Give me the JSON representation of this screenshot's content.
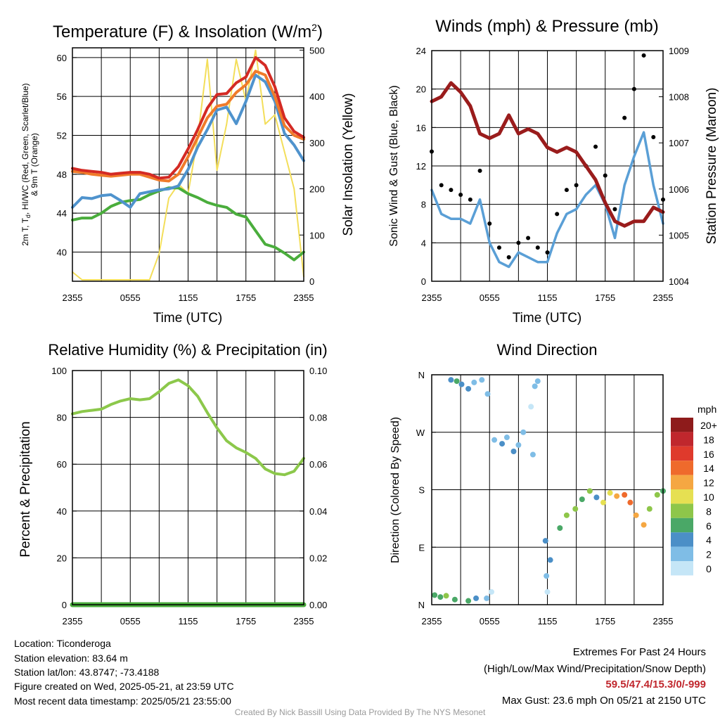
{
  "colors": {
    "temp_red": "#d42a24",
    "temp_orange": "#f07b2a",
    "temp_blue": "#4f93cd",
    "temp_green": "#4aad3c",
    "insolation": "#f3de5a",
    "wind_blue": "#5a9fd6",
    "gust": "#000000",
    "pressure": "#9a1c1c",
    "rh": "#8cc84b",
    "precip": "#4aad3c"
  },
  "time_ticks": [
    "2355",
    "0555",
    "1155",
    "1755",
    "2355"
  ],
  "charts": {
    "temperature": {
      "title": "Temperature (F) & Insolation (W/m",
      "title_sup": "2",
      "title_close": ")",
      "xlabel": "Time (UTC)",
      "ylabel_line1": "2m T, T",
      "ylabel_sub": "d",
      "ylabel_rest": ", HI/WC (Red, Green, Scarlet/Blue)",
      "ylabel_line2": "& 9m T (Orange)",
      "y2label": "Solar Insolation (Yellow)",
      "yticks": [
        "40",
        "44",
        "48",
        "52",
        "56",
        "60"
      ],
      "y2ticks": [
        "0",
        "100",
        "200",
        "300",
        "400",
        "500"
      ]
    },
    "winds": {
      "title": "Winds (mph) & Pressure (mb)",
      "xlabel": "Time (UTC)",
      "ylabel": "Sonic Wind & Gust (Blue, Black)",
      "y2label": "Station Pressure (Maroon)",
      "yticks": [
        "0",
        "4",
        "8",
        "12",
        "16",
        "20",
        "24"
      ],
      "y2ticks": [
        "1004",
        "1005",
        "1006",
        "1007",
        "1008",
        "1009"
      ]
    },
    "humidity": {
      "title": "Relative Humidity (%) & Precipitation (in)",
      "ylabel": "Percent & Precipitation",
      "yticks": [
        "0",
        "20",
        "40",
        "60",
        "80",
        "100"
      ],
      "y2ticks": [
        "0.00",
        "0.02",
        "0.04",
        "0.06",
        "0.08",
        "0.10"
      ]
    },
    "direction": {
      "title": "Wind Direction",
      "ylabel": "Direction (Colored By Speed)",
      "yticks": [
        "N",
        "E",
        "S",
        "W",
        "N"
      ],
      "legend_title": "mph",
      "legend_labels": [
        "20+",
        "18",
        "16",
        "14",
        "12",
        "10",
        "8",
        "6",
        "4",
        "2",
        "0"
      ],
      "legend_colors": [
        "#8e1b1b",
        "#c0272d",
        "#df3a2c",
        "#ef6a2c",
        "#f5a742",
        "#e6e052",
        "#8ec64a",
        "#4aa867",
        "#4b8fc7",
        "#7fbde6",
        "#c5e6f7"
      ]
    }
  },
  "chart_data": [
    {
      "type": "line",
      "title": "Temperature (F) & Insolation (W/m2)",
      "xlabel": "Time (UTC)",
      "x": [
        0,
        1,
        2,
        3,
        4,
        5,
        6,
        7,
        8,
        9,
        10,
        11,
        12,
        13,
        14,
        15,
        16,
        17,
        18,
        19,
        20,
        21,
        22,
        23,
        24
      ],
      "ylim": [
        37,
        61
      ],
      "y2lim": [
        0,
        505
      ],
      "series": [
        {
          "axis": "left",
          "color": "#d42a24",
          "values": [
            48.6,
            48.4,
            48.3,
            48.2,
            48.0,
            48.1,
            48.2,
            48.2,
            48.0,
            47.6,
            47.7,
            48.8,
            50.6,
            52.6,
            54.8,
            56.2,
            56.3,
            57.4,
            58.0,
            60.0,
            59.2,
            57.0,
            53.8,
            52.4,
            51.8
          ]
        },
        {
          "axis": "left",
          "color": "#f07b2a",
          "values": [
            48.3,
            48.2,
            48.0,
            47.9,
            47.8,
            47.9,
            48.0,
            48.0,
            47.7,
            47.4,
            47.3,
            48.0,
            49.8,
            51.8,
            53.8,
            55.0,
            55.2,
            56.4,
            57.2,
            58.6,
            58.2,
            56.0,
            53.0,
            52.0,
            51.6
          ]
        },
        {
          "axis": "left",
          "color": "#4f93cd",
          "values": [
            44.6,
            45.6,
            45.5,
            45.8,
            45.9,
            45.3,
            44.6,
            46.0,
            46.2,
            46.4,
            46.5,
            46.8,
            48.5,
            50.8,
            52.6,
            54.6,
            54.9,
            53.2,
            55.5,
            58.2,
            57.5,
            55.5,
            52.2,
            51.0,
            49.4
          ]
        },
        {
          "axis": "left",
          "color": "#4aad3c",
          "values": [
            43.3,
            43.5,
            43.5,
            44.0,
            44.7,
            45.1,
            45.3,
            45.4,
            45.9,
            46.3,
            46.6,
            46.6,
            46.0,
            45.6,
            45.1,
            44.8,
            44.6,
            43.9,
            43.6,
            42.2,
            40.8,
            40.5,
            39.9,
            39.2,
            40.0
          ]
        },
        {
          "axis": "right",
          "color": "#f3de5a",
          "values": [
            20,
            3,
            3,
            3,
            3,
            3,
            3,
            3,
            3,
            60,
            180,
            210,
            190,
            310,
            480,
            240,
            340,
            480,
            390,
            500,
            340,
            360,
            280,
            200,
            10
          ]
        }
      ]
    },
    {
      "type": "line",
      "title": "Winds (mph) & Pressure (mb)",
      "xlabel": "Time (UTC)",
      "x": [
        0,
        1,
        2,
        3,
        4,
        5,
        6,
        7,
        8,
        9,
        10,
        11,
        12,
        13,
        14,
        15,
        16,
        17,
        18,
        19,
        20,
        21,
        22,
        23,
        24
      ],
      "ylim": [
        0,
        24
      ],
      "y2lim": [
        1004,
        1009
      ],
      "series": [
        {
          "axis": "left",
          "color": "#5a9fd6",
          "values": [
            9.5,
            7.0,
            6.5,
            6.5,
            6.0,
            8.5,
            4.0,
            2.0,
            1.5,
            3.0,
            2.5,
            2.0,
            2.0,
            5.0,
            7.0,
            7.5,
            9.0,
            10.0,
            8.0,
            4.5,
            10.0,
            13.0,
            15.5,
            10.0,
            6.0
          ]
        },
        {
          "axis": "left",
          "color": "#000000",
          "values": [
            13.5,
            10.0,
            9.5,
            9.0,
            8.5,
            11.5,
            6.0,
            3.5,
            2.5,
            4.0,
            4.5,
            3.5,
            3.0,
            7.0,
            9.5,
            10.0,
            12.0,
            14.0,
            11.0,
            7.5,
            17.0,
            20.0,
            23.5,
            15.0,
            8.5
          ]
        },
        {
          "axis": "right",
          "color": "#9a1c1c",
          "values": [
            1007.9,
            1008.0,
            1008.3,
            1008.1,
            1007.8,
            1007.2,
            1007.1,
            1007.2,
            1007.6,
            1007.2,
            1007.3,
            1007.2,
            1006.9,
            1006.8,
            1006.9,
            1006.8,
            1006.5,
            1006.2,
            1005.7,
            1005.3,
            1005.2,
            1005.3,
            1005.3,
            1005.6,
            1005.5
          ]
        }
      ]
    },
    {
      "type": "line",
      "title": "Relative Humidity (%) & Precipitation (in)",
      "x": [
        0,
        1,
        2,
        3,
        4,
        5,
        6,
        7,
        8,
        9,
        10,
        11,
        12,
        13,
        14,
        15,
        16,
        17,
        18,
        19,
        20,
        21,
        22,
        23,
        24
      ],
      "ylim": [
        0,
        100
      ],
      "y2lim": [
        0,
        0.1
      ],
      "series": [
        {
          "axis": "left",
          "color": "#8cc84b",
          "values": [
            81.5,
            82.5,
            83.0,
            83.5,
            85.5,
            87.0,
            88.0,
            87.5,
            88.0,
            91.0,
            94.5,
            96.0,
            93.5,
            89.0,
            82.0,
            75.5,
            70.0,
            67.0,
            65.0,
            62.5,
            58.0,
            56.0,
            55.5,
            57.0,
            62.5
          ]
        },
        {
          "axis": "right",
          "color": "#4aad3c",
          "values": [
            0,
            0,
            0,
            0,
            0,
            0,
            0,
            0,
            0,
            0,
            0,
            0,
            0,
            0,
            0,
            0,
            0,
            0,
            0,
            0,
            0,
            0,
            0,
            0,
            0
          ]
        }
      ]
    },
    {
      "type": "scatter",
      "title": "Wind Direction",
      "ylabel": "Direction (Colored By Speed)",
      "xlim": [
        0,
        24
      ],
      "ylim": [
        0,
        360
      ],
      "points": [
        [
          0.3,
          15,
          5
        ],
        [
          0.9,
          12,
          6
        ],
        [
          1.5,
          14,
          7
        ],
        [
          2.4,
          8,
          5
        ],
        [
          3.8,
          6,
          6
        ],
        [
          4.6,
          10,
          4
        ],
        [
          5.7,
          10,
          1
        ],
        [
          6.2,
          20,
          0
        ],
        [
          2.0,
          352,
          4
        ],
        [
          2.6,
          350,
          5
        ],
        [
          3.1,
          345,
          3
        ],
        [
          3.8,
          338,
          4
        ],
        [
          4.4,
          348,
          2
        ],
        [
          5.2,
          352,
          1
        ],
        [
          5.8,
          330,
          2
        ],
        [
          6.5,
          258,
          1
        ],
        [
          7.3,
          252,
          3
        ],
        [
          7.8,
          262,
          2
        ],
        [
          8.5,
          240,
          4
        ],
        [
          9.0,
          250,
          2
        ],
        [
          9.5,
          270,
          1
        ],
        [
          10.3,
          310,
          0
        ],
        [
          10.7,
          342,
          1
        ],
        [
          11.0,
          350,
          2
        ],
        [
          10.5,
          235,
          1
        ],
        [
          11.8,
          100,
          4
        ],
        [
          12.3,
          70,
          3
        ],
        [
          11.9,
          45,
          2
        ],
        [
          12.0,
          20,
          0
        ],
        [
          13.3,
          120,
          6
        ],
        [
          14.0,
          140,
          7
        ],
        [
          14.9,
          150,
          8
        ],
        [
          15.6,
          165,
          6
        ],
        [
          16.4,
          178,
          7
        ],
        [
          17.1,
          168,
          4
        ],
        [
          17.8,
          160,
          9
        ],
        [
          18.5,
          175,
          10
        ],
        [
          19.2,
          170,
          12
        ],
        [
          20.0,
          172,
          13
        ],
        [
          20.6,
          160,
          14
        ],
        [
          21.2,
          140,
          12
        ],
        [
          22.0,
          125,
          11
        ],
        [
          22.6,
          150,
          8
        ],
        [
          23.4,
          172,
          7
        ],
        [
          24.0,
          178,
          6
        ]
      ]
    }
  ],
  "footer": {
    "location": "Location: Ticonderoga",
    "elevation": "Station elevation: 83.64 m",
    "latlon": "Station lat/lon: 43.8747; -73.4188",
    "created": "Figure created on Wed, 2025-05-21, at 23:59 UTC",
    "recent": "Most recent data timestamp: 2025/05/21 23:55:00",
    "extremes_title": "Extremes For Past 24 Hours",
    "extremes_sub": "(High/Low/Max Wind/Precipitation/Snow Depth)",
    "extremes_values": "59.5/47.4/15.3/0/-999",
    "max_gust": "Max Gust: 23.6 mph On 05/21 at 2150 UTC",
    "credit": "Created By Nick Bassill Using Data Provided By The NYS Mesonet"
  }
}
